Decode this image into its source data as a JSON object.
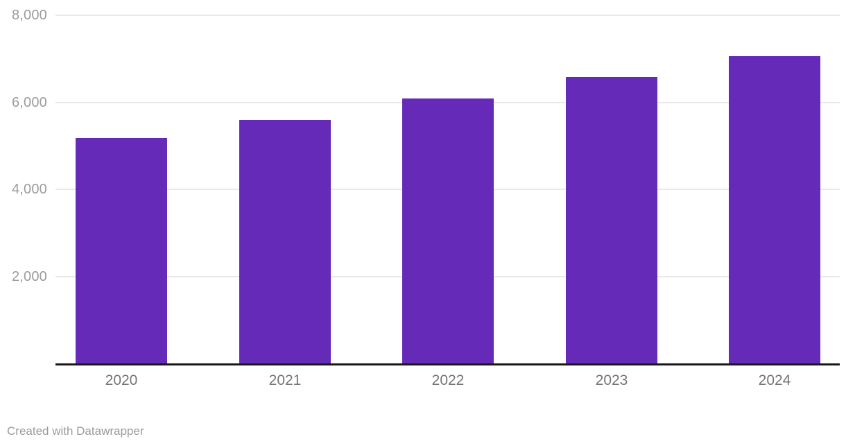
{
  "chart_data": {
    "type": "bar",
    "categories": [
      "2020",
      "2021",
      "2022",
      "2023",
      "2024"
    ],
    "values": [
      5180,
      5600,
      6090,
      6580,
      7060
    ],
    "title": "",
    "xlabel": "",
    "ylabel": "",
    "ylim": [
      0,
      8000
    ],
    "yticks": [
      2000,
      4000,
      6000,
      8000
    ],
    "ytick_labels": [
      "2,000",
      "4,000",
      "6,000",
      "8,000"
    ],
    "grid": true,
    "legend": "none",
    "bar_color": "#652bb8",
    "grid_color": "#e9e9e9",
    "axis_line_color": "#181818",
    "ytick_label_color": "#9c9c9c",
    "xtick_label_color": "#757575"
  },
  "footer": {
    "credit": "Created with Datawrapper"
  }
}
